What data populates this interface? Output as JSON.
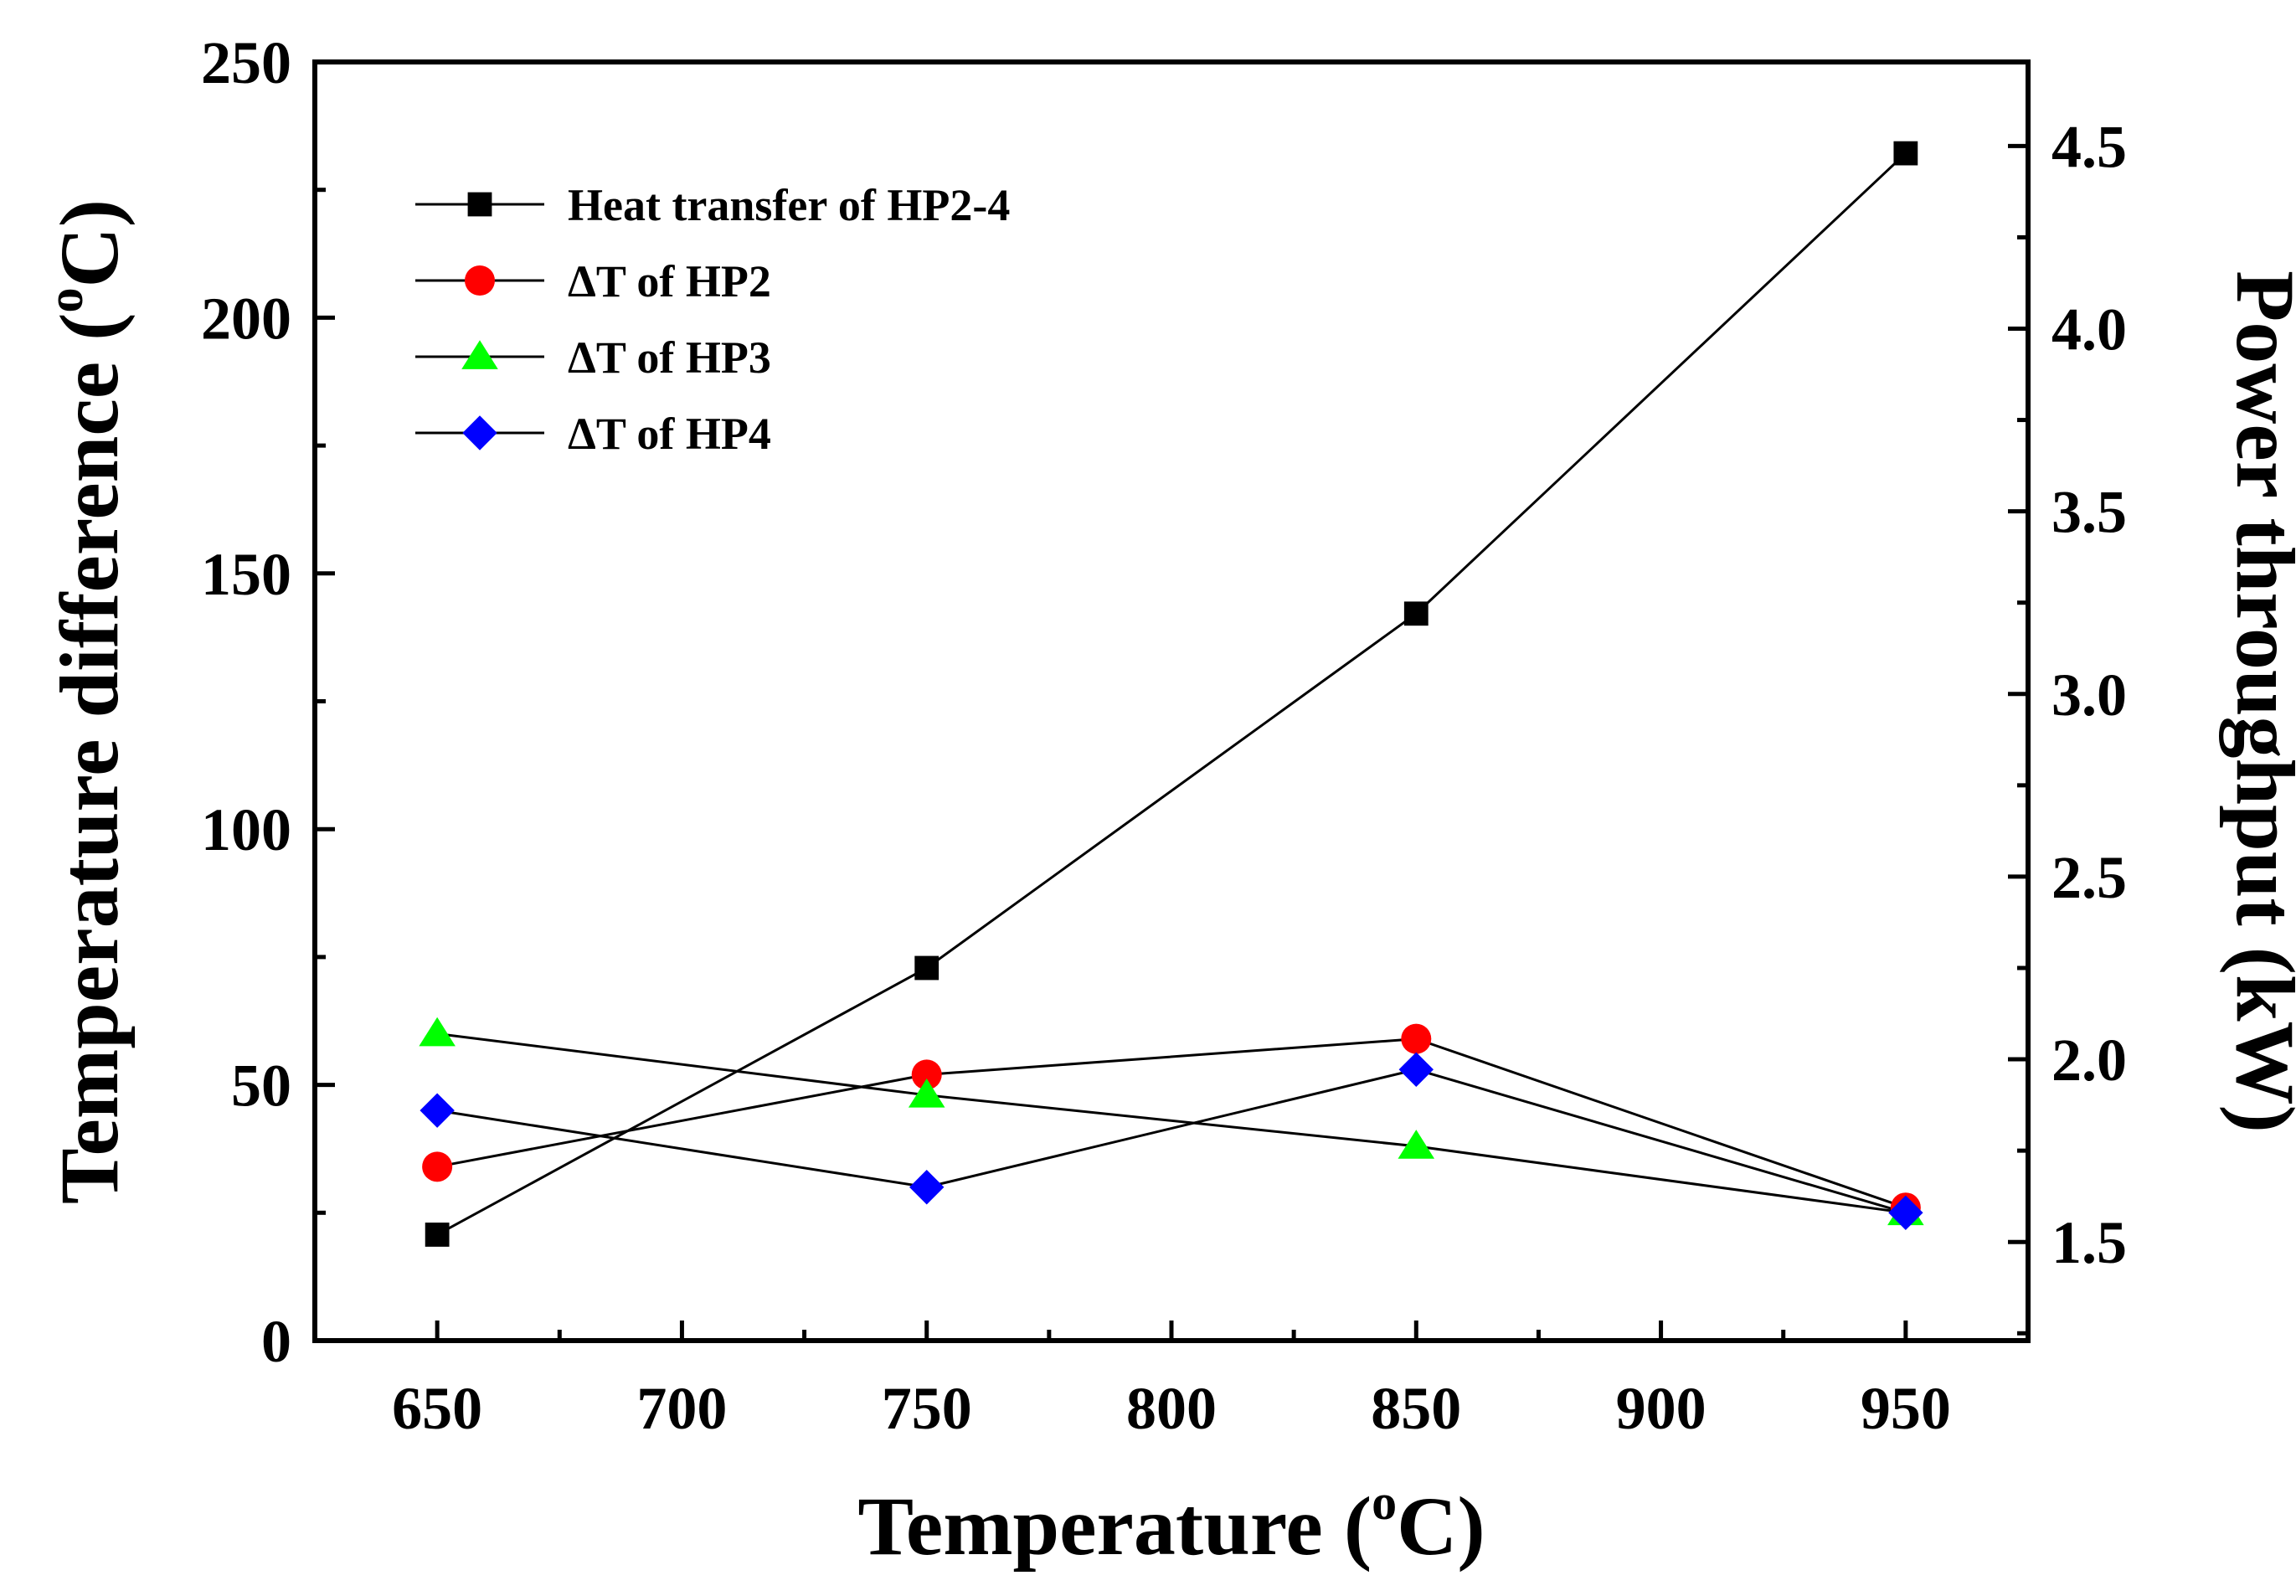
{
  "chart_data": {
    "type": "line",
    "title": "",
    "x": [
      650,
      750,
      850,
      950
    ],
    "xlabel": {
      "main": "Temperature (",
      "sup": "o",
      "rest": "C)"
    },
    "xlim": [
      625,
      975
    ],
    "xticks_major": [
      650,
      700,
      750,
      800,
      850,
      900,
      950
    ],
    "ylabel_left": {
      "main": "Temperature difference (",
      "sup": "o",
      "rest": "C)"
    },
    "ylim_left": [
      0,
      250
    ],
    "yticks_left": [
      0,
      50,
      100,
      150,
      200,
      250
    ],
    "ylabel_right": "Power throughput (kW)",
    "ylim_right": [
      1.23,
      4.73
    ],
    "yticks_right": [
      "1.5",
      "2.0",
      "2.5",
      "3.0",
      "3.5",
      "4.0",
      "4.5"
    ],
    "legend_position": "top-left",
    "series": [
      {
        "name": "Heat transfer of HP2-4",
        "axis": "right",
        "marker": "square",
        "color": "#000000",
        "values": [
          1.52,
          2.25,
          3.22,
          4.48
        ]
      },
      {
        "name": "ΔT of HP2",
        "axis": "left",
        "marker": "circle",
        "color": "#ff0000",
        "values": [
          34,
          52,
          59,
          26
        ]
      },
      {
        "name": "ΔT of HP3",
        "axis": "left",
        "marker": "triangle",
        "color": "#00ff00",
        "values": [
          60,
          48,
          38,
          25
        ]
      },
      {
        "name": "ΔT of HP4",
        "axis": "left",
        "marker": "diamond",
        "color": "#0000ff",
        "values": [
          45,
          30,
          53,
          25
        ]
      }
    ]
  }
}
